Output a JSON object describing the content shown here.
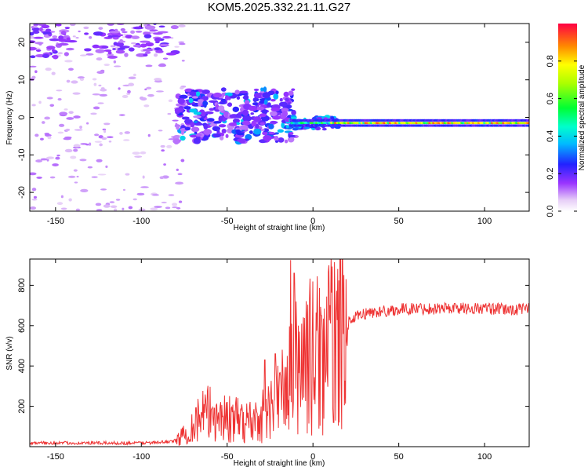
{
  "title": "KOM5.2025.332.21.11.G27",
  "chart_data": [
    {
      "type": "heatmap",
      "panel": "top",
      "xlabel": "Height of straight line (km)",
      "ylabel": "Frequency (Hz)",
      "xlim": [
        -165,
        126
      ],
      "ylim": [
        -25,
        25
      ],
      "xticks": [
        -150,
        -100,
        -50,
        0,
        50,
        100
      ],
      "xtick_labels": [
        "-150",
        "-100",
        "-50",
        "0",
        "50",
        "100"
      ],
      "yticks": [
        -20,
        -10,
        0,
        10,
        20
      ],
      "ytick_labels": [
        "-20",
        "-10",
        "0",
        "10",
        "20"
      ],
      "colorbar": {
        "label": "Normalized spectral amplitude",
        "range": [
          0.0,
          1.0
        ],
        "ticks": [
          0.0,
          0.2,
          0.4,
          0.6,
          0.8
        ],
        "tick_labels": [
          "0.0",
          "0.2",
          "0.4",
          "0.6",
          "0.8"
        ]
      },
      "features": {
        "carrier_frequency_hz": -1.5,
        "carrier_from_km": -12,
        "carrier_to_km": 126,
        "carrier_amplitude_range": [
          0.25,
          0.95
        ],
        "scattered_region_km": [
          -80,
          -10
        ],
        "noise_region_km": [
          -165,
          -80
        ],
        "noise_amplitude_range": [
          0.05,
          0.2
        ]
      }
    },
    {
      "type": "line",
      "panel": "bottom",
      "xlabel": "Height of straight line (km)",
      "ylabel": "SNR (v/v)",
      "xlim": [
        -165,
        126
      ],
      "ylim": [
        0,
        930
      ],
      "xticks": [
        -150,
        -100,
        -50,
        0,
        50,
        100
      ],
      "xtick_labels": [
        "-150",
        "-100",
        "-50",
        "0",
        "50",
        "100"
      ],
      "yticks": [
        200,
        400,
        600,
        800
      ],
      "ytick_labels": [
        "200",
        "400",
        "600",
        "800"
      ],
      "line_color": "#ee3333",
      "series": [
        {
          "name": "SNR",
          "x": [
            -165,
            -150,
            -130,
            -110,
            -90,
            -80,
            -75,
            -70,
            -65,
            -60,
            -55,
            -50,
            -45,
            -40,
            -35,
            -30,
            -25,
            -20,
            -15,
            -12,
            -10,
            -5,
            0,
            5,
            10,
            12,
            15,
            20,
            25,
            30,
            40,
            50,
            60,
            70,
            80,
            90,
            100,
            110,
            120,
            126
          ],
          "y": [
            18,
            18,
            18,
            18,
            20,
            30,
            60,
            110,
            150,
            165,
            155,
            140,
            130,
            125,
            130,
            150,
            180,
            240,
            300,
            360,
            400,
            440,
            450,
            470,
            500,
            520,
            560,
            610,
            640,
            660,
            670,
            680,
            685,
            685,
            688,
            685,
            685,
            680,
            680,
            685
          ],
          "spikes": [
            {
              "x": -13,
              "y": 925
            },
            {
              "x": -11,
              "y": 860
            },
            {
              "x": -28,
              "y": 430
            },
            {
              "x": -22,
              "y": 460
            },
            {
              "x": 12,
              "y": 120
            },
            {
              "x": 5,
              "y": 650
            }
          ]
        }
      ]
    }
  ]
}
